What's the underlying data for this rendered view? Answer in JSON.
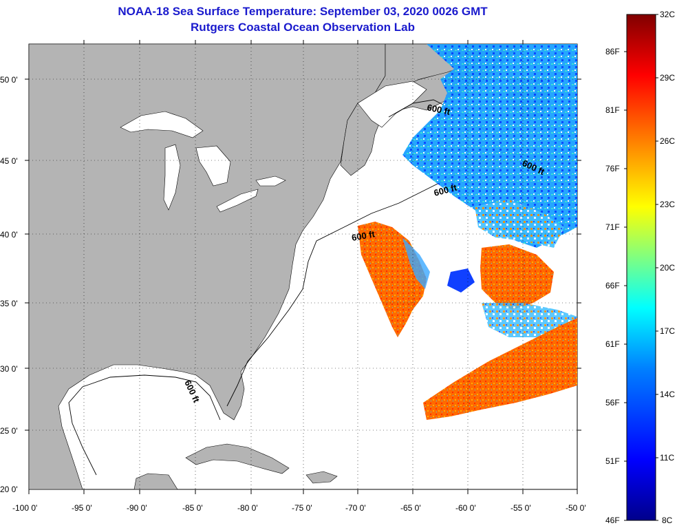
{
  "title": {
    "line1": "NOAA-18 Sea Surface Temperature:  September 03, 2020 0026 GMT",
    "line2": "Rutgers Coastal Ocean Observation Lab"
  },
  "axes": {
    "longitude_labels": [
      "-100 0'",
      "-95 0'",
      "-90 0'",
      "-85 0'",
      "-80 0'",
      "-75 0'",
      "-70 0'",
      "-65 0'",
      "-60 0'",
      "-55 0'",
      "-50 0'"
    ],
    "latitude_labels": [
      "50 0'",
      "45 0'",
      "40 0'",
      "35 0'",
      "30 0'",
      "25 0'",
      "20 0'"
    ]
  },
  "contour_label": "600 ft",
  "colorbar": {
    "celsius": [
      "32C",
      "29C",
      "26C",
      "23C",
      "20C",
      "17C",
      "14C",
      "11C",
      "8C"
    ],
    "fahrenheit": [
      "86F",
      "81F",
      "76F",
      "71F",
      "66F",
      "61F",
      "56F",
      "51F",
      "46F"
    ]
  },
  "colors": {
    "title": "#1a1acd",
    "land": "#b4b4b4",
    "ocean": "#ffffff",
    "scale": [
      "#00008b",
      "#0000ff",
      "#0080ff",
      "#00ffff",
      "#80ff80",
      "#ffff00",
      "#ff8000",
      "#ff0000",
      "#800000"
    ]
  }
}
